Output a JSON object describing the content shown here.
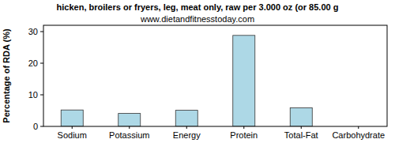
{
  "chart_data": {
    "type": "bar",
    "title": "hicken, broilers or fryers, leg, meat only, raw per 3.000 oz (or 85.00 g",
    "subtitle": "www.dietandfitnesstoday.com",
    "y_label": "Percentage of RDA (%)",
    "categories": [
      "Sodium",
      "Potassium",
      "Energy",
      "Protein",
      "Total-Fat",
      "Carbohydrate"
    ],
    "values": [
      5.2,
      4.1,
      5.1,
      28.8,
      5.9,
      0
    ],
    "color": "#add8e6",
    "ylim": [
      0,
      32
    ],
    "yticks": [
      0,
      10,
      20,
      30
    ],
    "grid": false
  }
}
